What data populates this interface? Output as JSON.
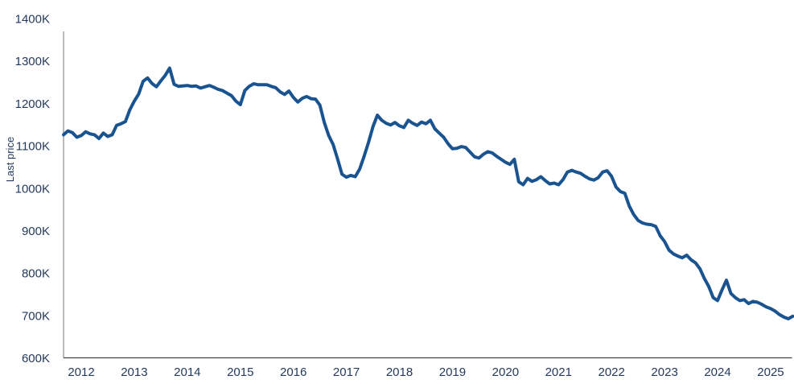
{
  "chart_data": {
    "type": "line",
    "title": "",
    "ylabel": "Last price",
    "xlabel": "",
    "grid": false,
    "legend": "none",
    "x_start": {
      "year": 2011,
      "month": 9
    },
    "frequency": "monthly",
    "x_tick_years": [
      2012,
      2013,
      2014,
      2015,
      2016,
      2017,
      2018,
      2019,
      2020,
      2021,
      2022,
      2023,
      2024,
      2025
    ],
    "y_ticks": [
      600,
      700,
      800,
      900,
      1000,
      1100,
      1200,
      1300,
      1400
    ],
    "y_tick_labels": [
      "600K",
      "700K",
      "800K",
      "900K",
      "1000K",
      "1100K",
      "1200K",
      "1300K",
      "1400K"
    ],
    "ylim": [
      600,
      1400
    ],
    "series": [
      {
        "name": "Last price",
        "unit": "K",
        "values": [
          1126,
          1135,
          1131,
          1120,
          1124,
          1133,
          1128,
          1126,
          1117,
          1130,
          1122,
          1126,
          1148,
          1152,
          1157,
          1185,
          1205,
          1222,
          1252,
          1260,
          1247,
          1239,
          1253,
          1266,
          1283,
          1245,
          1240,
          1241,
          1242,
          1240,
          1241,
          1236,
          1239,
          1242,
          1238,
          1233,
          1230,
          1224,
          1218,
          1205,
          1197,
          1230,
          1240,
          1246,
          1244,
          1244,
          1244,
          1240,
          1237,
          1227,
          1221,
          1229,
          1214,
          1203,
          1212,
          1216,
          1211,
          1210,
          1196,
          1155,
          1124,
          1103,
          1069,
          1033,
          1026,
          1030,
          1027,
          1045,
          1075,
          1108,
          1145,
          1172,
          1160,
          1153,
          1149,
          1155,
          1147,
          1143,
          1160,
          1153,
          1148,
          1156,
          1152,
          1160,
          1140,
          1130,
          1120,
          1105,
          1093,
          1094,
          1098,
          1096,
          1085,
          1074,
          1071,
          1080,
          1086,
          1083,
          1075,
          1068,
          1061,
          1056,
          1068,
          1015,
          1008,
          1023,
          1016,
          1020,
          1027,
          1018,
          1010,
          1012,
          1008,
          1020,
          1038,
          1042,
          1038,
          1035,
          1028,
          1022,
          1019,
          1025,
          1038,
          1041,
          1028,
          1003,
          992,
          988,
          958,
          938,
          924,
          918,
          915,
          914,
          910,
          888,
          874,
          854,
          845,
          840,
          836,
          842,
          831,
          824,
          810,
          787,
          768,
          742,
          735,
          760,
          783,
          752,
          742,
          735,
          737,
          728,
          733,
          731,
          726,
          720,
          716,
          710,
          702,
          696,
          692,
          698
        ]
      }
    ]
  },
  "colors": {
    "line": "#1a5490",
    "tick_text": "#243a5c",
    "axis_vertical": "#8c8c8c",
    "axis_horizontal": "#454545",
    "background": "#ffffff"
  }
}
